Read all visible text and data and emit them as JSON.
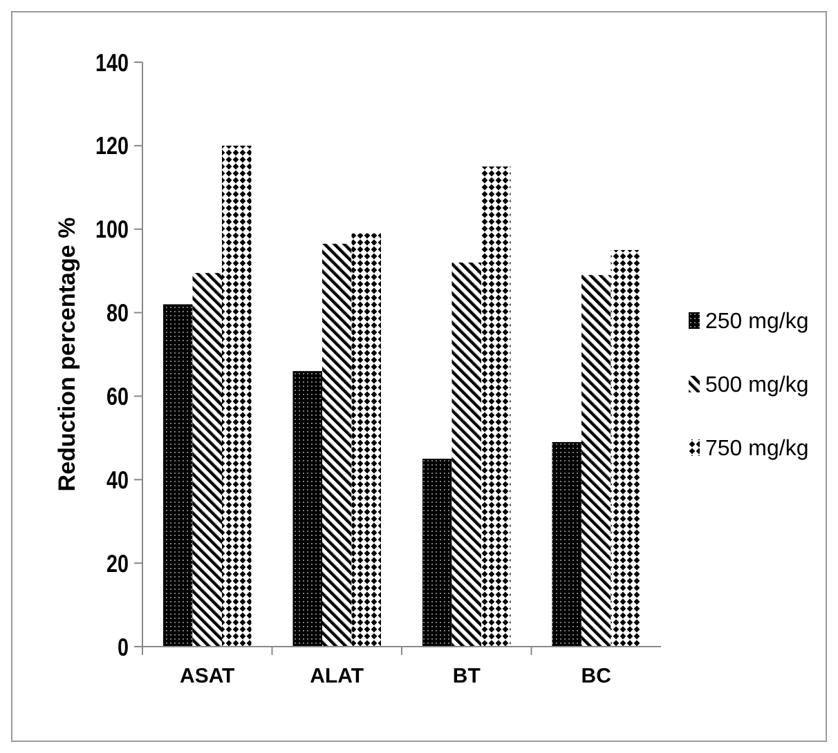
{
  "chart_data": {
    "type": "bar",
    "ylabel": "Reduction percentage %",
    "categories": [
      "ASAT",
      "ALAT",
      "BT",
      "BC"
    ],
    "series": [
      {
        "name": "250 mg/kg",
        "color": "#000000",
        "values": [
          82,
          66,
          45,
          49
        ]
      },
      {
        "name": "500 mg/kg",
        "color": "#000000",
        "values": [
          89.5,
          96.5,
          92,
          89
        ]
      },
      {
        "name": "750 mg/kg",
        "color": "#000000",
        "values": [
          120,
          99,
          115,
          95
        ]
      }
    ],
    "ylim": [
      0,
      140
    ],
    "yticks": [
      0,
      20,
      40,
      60,
      80,
      100,
      120,
      140
    ],
    "grid": false,
    "legend": "right"
  }
}
